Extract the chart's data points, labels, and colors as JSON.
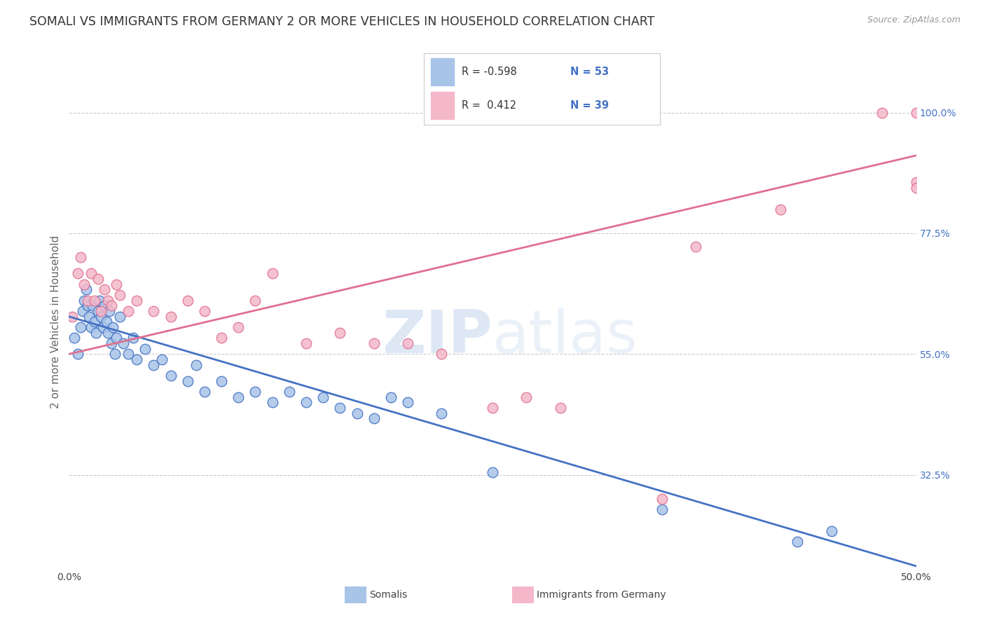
{
  "title": "SOMALI VS IMMIGRANTS FROM GERMANY 2 OR MORE VEHICLES IN HOUSEHOLD CORRELATION CHART",
  "source": "Source: ZipAtlas.com",
  "ylabel": "2 or more Vehicles in Household",
  "xlim": [
    0.0,
    50.0
  ],
  "ylim": [
    15.0,
    107.0
  ],
  "y_ticks_right": [
    32.5,
    55.0,
    77.5,
    100.0
  ],
  "y_tick_labels_right": [
    "32.5%",
    "55.0%",
    "77.5%",
    "100.0%"
  ],
  "color_somali": "#a8c5e8",
  "color_germany": "#f4b8ca",
  "line_color_somali": "#4472c4",
  "line_color_germany": "#e07090",
  "background_color": "#ffffff",
  "somali_r": -0.598,
  "somali_n": 53,
  "germany_r": 0.412,
  "germany_n": 39,
  "somali_x": [
    0.3,
    0.5,
    0.7,
    0.8,
    0.9,
    1.0,
    1.1,
    1.2,
    1.3,
    1.4,
    1.5,
    1.6,
    1.7,
    1.8,
    1.9,
    2.0,
    2.1,
    2.2,
    2.3,
    2.4,
    2.5,
    2.6,
    2.7,
    2.8,
    3.0,
    3.2,
    3.5,
    3.8,
    4.0,
    4.5,
    5.0,
    5.5,
    6.0,
    7.0,
    7.5,
    8.0,
    9.0,
    10.0,
    11.0,
    12.0,
    13.0,
    14.0,
    15.0,
    16.0,
    17.0,
    18.0,
    19.0,
    20.0,
    22.0,
    25.0,
    35.0,
    43.0,
    45.0
  ],
  "somali_y": [
    58.0,
    55.0,
    60.0,
    63.0,
    65.0,
    67.0,
    64.0,
    62.0,
    60.0,
    64.0,
    61.0,
    59.0,
    63.0,
    65.0,
    62.0,
    60.0,
    64.0,
    61.0,
    59.0,
    63.0,
    57.0,
    60.0,
    55.0,
    58.0,
    62.0,
    57.0,
    55.0,
    58.0,
    54.0,
    56.0,
    53.0,
    54.0,
    51.0,
    50.0,
    53.0,
    48.0,
    50.0,
    47.0,
    48.0,
    46.0,
    48.0,
    46.0,
    47.0,
    45.0,
    44.0,
    43.0,
    47.0,
    46.0,
    44.0,
    33.0,
    26.0,
    20.0,
    22.0
  ],
  "germany_x": [
    0.2,
    0.5,
    0.7,
    0.9,
    1.1,
    1.3,
    1.5,
    1.7,
    1.9,
    2.1,
    2.3,
    2.5,
    2.8,
    3.0,
    3.5,
    4.0,
    5.0,
    6.0,
    7.0,
    8.0,
    9.0,
    10.0,
    11.0,
    12.0,
    14.0,
    16.0,
    18.0,
    20.0,
    22.0,
    25.0,
    27.0,
    29.0,
    35.0,
    48.0,
    50.0,
    50.0,
    50.0,
    37.0,
    42.0
  ],
  "germany_y": [
    62.0,
    70.0,
    73.0,
    68.0,
    65.0,
    70.0,
    65.0,
    69.0,
    63.0,
    67.0,
    65.0,
    64.0,
    68.0,
    66.0,
    63.0,
    65.0,
    63.0,
    62.0,
    65.0,
    63.0,
    58.0,
    60.0,
    65.0,
    70.0,
    57.0,
    59.0,
    57.0,
    57.0,
    55.0,
    45.0,
    47.0,
    45.0,
    28.0,
    100.0,
    100.0,
    87.0,
    86.0,
    75.0,
    82.0
  ],
  "blue_line_x0": 0.0,
  "blue_line_y0": 62.0,
  "blue_line_x1": 50.0,
  "blue_line_y1": 15.5,
  "pink_line_x0": 0.0,
  "pink_line_y0": 55.0,
  "pink_line_x1": 50.0,
  "pink_line_y1": 92.0
}
